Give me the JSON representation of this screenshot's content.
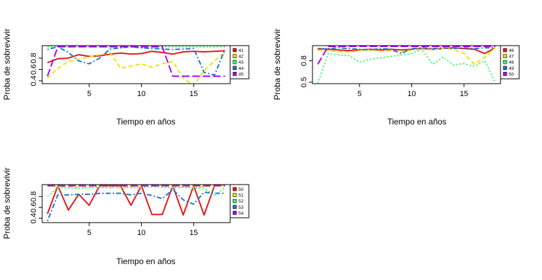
{
  "chart_data": [
    {
      "type": "line",
      "xlabel": "Tiempo en años",
      "ylabel": "Proba de sobrevivir",
      "xlim": [
        0.5,
        18.5
      ],
      "ylim": [
        0.35,
        1.02
      ],
      "xticks": [
        5,
        10,
        15
      ],
      "yticks": [
        0.4,
        0.6,
        0.8
      ],
      "grid": false,
      "legend_position": "right",
      "x": [
        1,
        2,
        3,
        4,
        5,
        6,
        7,
        8,
        9,
        10,
        11,
        12,
        13,
        14,
        15,
        16,
        17,
        18
      ],
      "series": [
        {
          "name": "41",
          "color": "#e41a1c",
          "dash": "solid",
          "values": [
            0.72,
            0.79,
            0.8,
            0.86,
            0.83,
            0.84,
            0.87,
            0.89,
            0.87,
            0.88,
            0.92,
            0.9,
            0.87,
            0.91,
            0.92,
            0.91,
            0.92,
            0.93
          ]
        },
        {
          "name": "42",
          "color": "#e6e600",
          "dash": "dashed",
          "values": [
            0.45,
            0.62,
            0.74,
            0.78,
            0.82,
            0.86,
            0.9,
            0.62,
            0.66,
            0.7,
            0.64,
            0.7,
            0.74,
            0.45,
            0.32,
            0.58,
            0.75,
            0.9
          ]
        },
        {
          "name": "43",
          "color": "#33ff66",
          "dash": "dotted",
          "values": [
            1.0,
            1.0,
            1.0,
            1.0,
            1.0,
            1.0,
            1.0,
            1.0,
            1.0,
            1.0,
            1.0,
            1.0,
            1.0,
            1.0,
            1.0,
            1.0,
            1.0,
            1.0
          ]
        },
        {
          "name": "44",
          "color": "#1f78d0",
          "dash": "dotdash",
          "values": [
            0.95,
            1.0,
            0.9,
            0.75,
            0.7,
            0.8,
            0.96,
            0.98,
            1.0,
            0.98,
            0.97,
            0.96,
            0.95,
            0.96,
            0.97,
            0.55,
            0.5,
            0.95
          ]
        },
        {
          "name": "45",
          "color": "#b000ff",
          "dash": "longdash",
          "values": [
            0.48,
            1.0,
            1.0,
            1.0,
            1.0,
            1.0,
            1.0,
            1.0,
            1.0,
            1.0,
            1.0,
            1.0,
            0.48,
            0.48,
            0.48,
            0.48,
            0.48,
            0.48
          ]
        }
      ]
    },
    {
      "type": "line",
      "xlabel": "Tiempo en años",
      "ylabel": "Proba de sobrevivir",
      "xlim": [
        0.5,
        18.5
      ],
      "ylim": [
        0.48,
        1.01
      ],
      "xticks": [
        5,
        10,
        15
      ],
      "yticks": [
        0.5,
        0.8
      ],
      "grid": false,
      "legend_position": "right",
      "x": [
        1,
        2,
        3,
        4,
        5,
        6,
        7,
        8,
        9,
        10,
        11,
        12,
        13,
        14,
        15,
        16,
        17,
        18
      ],
      "series": [
        {
          "name": "46",
          "color": "#e41a1c",
          "dash": "solid",
          "values": [
            0.97,
            0.96,
            0.95,
            0.94,
            0.95,
            0.96,
            0.95,
            0.96,
            0.95,
            0.96,
            0.97,
            0.96,
            0.97,
            0.98,
            0.97,
            0.96,
            0.9,
            0.98
          ]
        },
        {
          "name": "47",
          "color": "#e6e600",
          "dash": "dashed",
          "values": [
            0.95,
            0.94,
            0.93,
            0.92,
            0.94,
            0.95,
            0.93,
            0.94,
            0.92,
            0.95,
            0.96,
            0.95,
            0.97,
            0.96,
            0.9,
            0.75,
            0.85,
            0.98
          ]
        },
        {
          "name": "48",
          "color": "#33ff66",
          "dash": "dotted",
          "values": [
            0.48,
            0.9,
            0.88,
            0.87,
            0.78,
            0.82,
            0.84,
            0.86,
            0.88,
            0.9,
            0.96,
            0.75,
            0.85,
            0.74,
            0.76,
            0.72,
            0.8,
            0.5
          ]
        },
        {
          "name": "49",
          "color": "#1f78d0",
          "dash": "dotdash",
          "values": [
            0.96,
            0.97,
            0.98,
            0.97,
            0.96,
            0.95,
            0.97,
            0.96,
            0.9,
            0.97,
            0.98,
            0.97,
            0.98,
            0.97,
            0.98,
            0.97,
            0.98,
            0.98
          ]
        },
        {
          "name": "50",
          "color": "#b000ff",
          "dash": "longdash",
          "values": [
            0.75,
            1.0,
            1.0,
            1.0,
            1.0,
            1.0,
            1.0,
            1.0,
            1.0,
            1.0,
            1.0,
            1.0,
            1.0,
            1.0,
            1.0,
            1.0,
            1.0,
            1.0
          ]
        }
      ]
    },
    {
      "type": "line",
      "xlabel": "Tiempo en años",
      "ylabel": "Proba de sobrevivir",
      "xlim": [
        0.5,
        18.5
      ],
      "ylim": [
        0.32,
        1.02
      ],
      "xticks": [
        5,
        10,
        15
      ],
      "yticks": [
        0.4,
        0.6,
        0.8
      ],
      "grid": false,
      "legend_position": "right",
      "x": [
        1,
        2,
        3,
        4,
        5,
        6,
        7,
        8,
        9,
        10,
        11,
        12,
        13,
        14,
        15,
        16,
        17,
        18
      ],
      "series": [
        {
          "name": "50",
          "color": "#e41a1c",
          "dash": "solid",
          "values": [
            0.48,
            1.0,
            0.55,
            0.84,
            0.64,
            1.0,
            1.0,
            1.0,
            0.64,
            1.0,
            0.47,
            0.47,
            1.0,
            0.46,
            1.0,
            0.46,
            1.0,
            1.0
          ]
        },
        {
          "name": "51",
          "color": "#e6e600",
          "dash": "dashed",
          "values": [
            1.0,
            0.98,
            0.98,
            0.97,
            0.97,
            0.98,
            0.98,
            0.97,
            0.98,
            0.98,
            1.0,
            1.0,
            0.98,
            0.97,
            0.98,
            0.98,
            0.99,
            1.0
          ]
        },
        {
          "name": "52",
          "color": "#33ff66",
          "dash": "dotted",
          "values": [
            0.8,
            0.97,
            0.96,
            0.95,
            0.96,
            0.97,
            0.96,
            0.97,
            0.96,
            0.97,
            0.98,
            0.97,
            0.96,
            0.97,
            0.96,
            0.95,
            0.82,
            0.97
          ]
        },
        {
          "name": "53",
          "color": "#1f78d0",
          "dash": "dotdash",
          "values": [
            0.35,
            0.83,
            0.83,
            0.84,
            0.84,
            0.86,
            0.86,
            0.86,
            0.83,
            0.86,
            0.82,
            0.76,
            0.93,
            0.74,
            0.66,
            0.88,
            0.86,
            0.86
          ]
        },
        {
          "name": "54",
          "color": "#b000ff",
          "dash": "longdash",
          "values": [
            1.0,
            1.0,
            1.0,
            1.0,
            1.0,
            1.0,
            1.0,
            1.0,
            1.0,
            1.0,
            1.0,
            1.0,
            1.0,
            1.0,
            1.0,
            1.0,
            1.0,
            1.0
          ]
        }
      ]
    }
  ]
}
